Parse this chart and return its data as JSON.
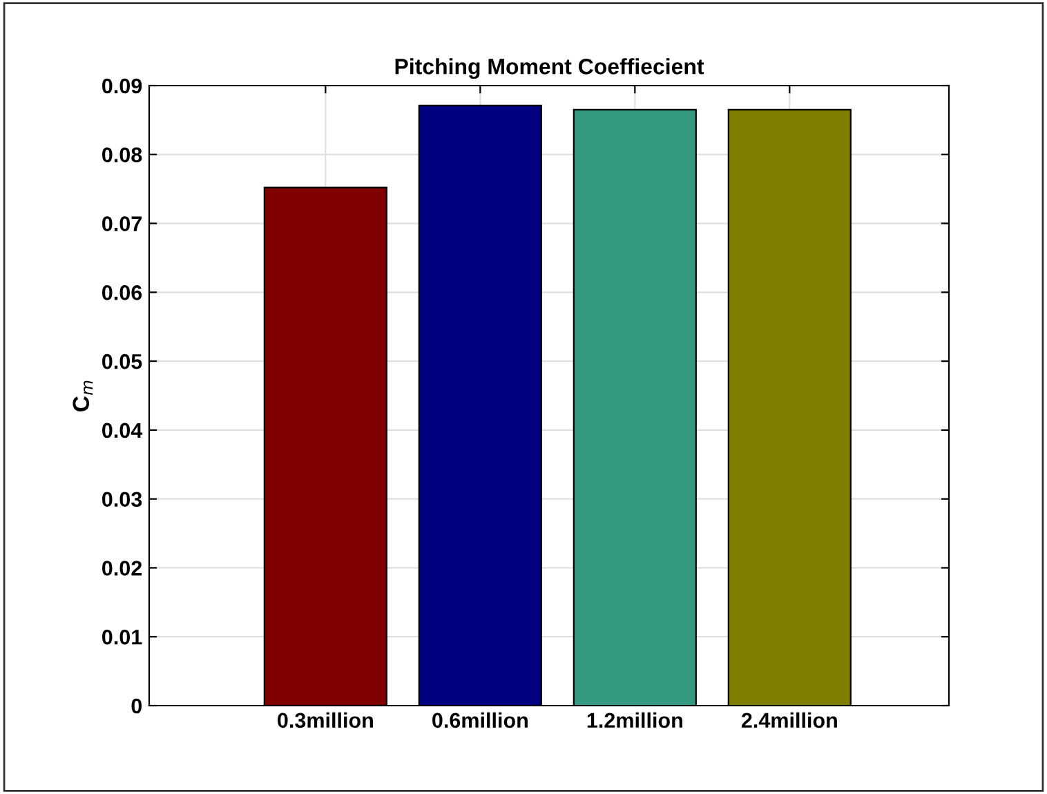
{
  "chart_data": {
    "type": "bar",
    "title": "Pitching Moment Coeffiecient",
    "ylabel": "C$_{m}$",
    "categories": [
      "0.3million",
      "0.6million",
      "1.2million",
      "2.4million"
    ],
    "values": [
      0.0752,
      0.0871,
      0.0865,
      0.0865
    ],
    "colors": [
      "#800000",
      "#000080",
      "#339980",
      "#808000"
    ],
    "ylim": [
      0,
      0.09
    ],
    "yticks": [
      0,
      0.01,
      0.02,
      0.03,
      0.04,
      0.05,
      0.06,
      0.07,
      0.08,
      0.09
    ],
    "grid": true
  }
}
